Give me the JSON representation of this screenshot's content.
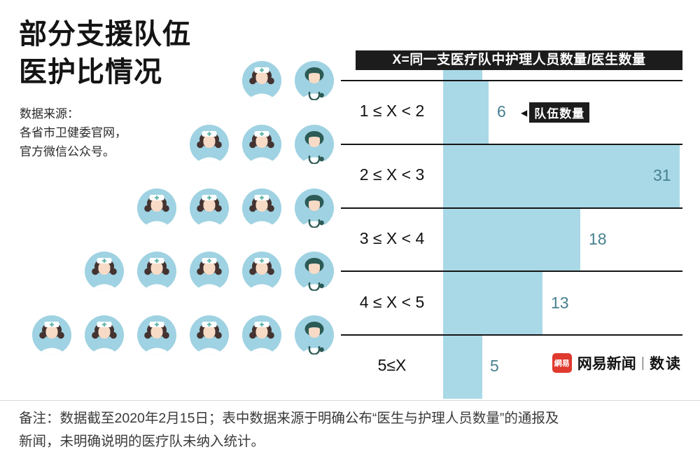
{
  "title": {
    "line1": "部分支援队伍",
    "line2": "医护比情况"
  },
  "source": {
    "lines": [
      "数据来源：",
      "各省市卫健委官网，",
      "官方微信公众号。"
    ]
  },
  "formula_header": "X=同一支医疗队中护理人员数量/医生数量",
  "annotation": {
    "arrow": "◀",
    "label": "队伍数量"
  },
  "chart_data": {
    "type": "bar",
    "orientation": "horizontal",
    "title": "部分支援队伍医护比情况",
    "categories": [
      "1 ≤ X < 2",
      "2 ≤ X < 3",
      "3 ≤ X < 4",
      "4 ≤ X < 5",
      "5≤X"
    ],
    "values": [
      6,
      31,
      18,
      13,
      5
    ],
    "value_label": "队伍数量",
    "xlim": [
      0,
      31
    ],
    "bar_color": "#a9d9e7",
    "value_color": "#47808f",
    "grid": "horizontal-separators",
    "icon_rows": [
      {
        "nurses": 1,
        "doctors": 1
      },
      {
        "nurses": 2,
        "doctors": 1
      },
      {
        "nurses": 3,
        "doctors": 1
      },
      {
        "nurses": 4,
        "doctors": 1
      },
      {
        "nurses": 5,
        "doctors": 1
      }
    ]
  },
  "note": {
    "lines": [
      "备注：数据截至2020年2月15日；表中数据来源于明确公布“医生与护理人员数量”的通报及",
      "新闻，未明确说明的医疗队未纳入统计。"
    ]
  },
  "brand": {
    "logo": "網易",
    "name": "网易新闻",
    "divider": "|",
    "sub": "数读"
  }
}
